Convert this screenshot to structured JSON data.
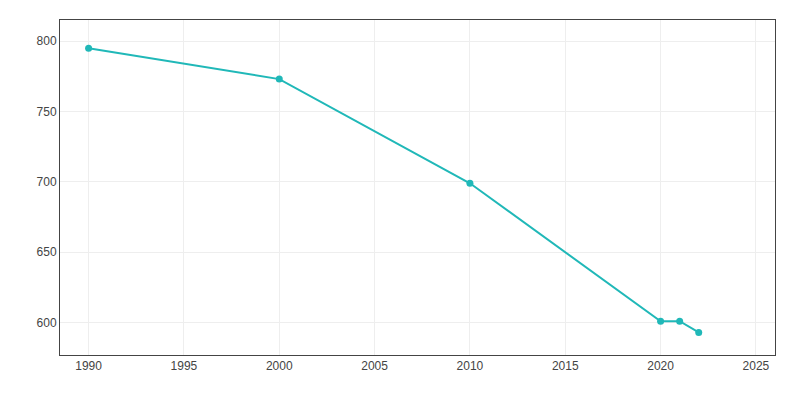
{
  "chart_data": {
    "type": "line",
    "x": [
      1990,
      2000,
      2010,
      2020,
      2021,
      2022
    ],
    "values": [
      795,
      773,
      699,
      601,
      601,
      593
    ],
    "color": "#20B8B8",
    "marker": "circle",
    "xlim": [
      1988.5,
      2026
    ],
    "ylim": [
      577,
      815
    ],
    "xticks": [
      1990,
      1995,
      2000,
      2005,
      2010,
      2015,
      2020,
      2025
    ],
    "yticks": [
      600,
      650,
      700,
      750,
      800
    ],
    "grid": true
  }
}
